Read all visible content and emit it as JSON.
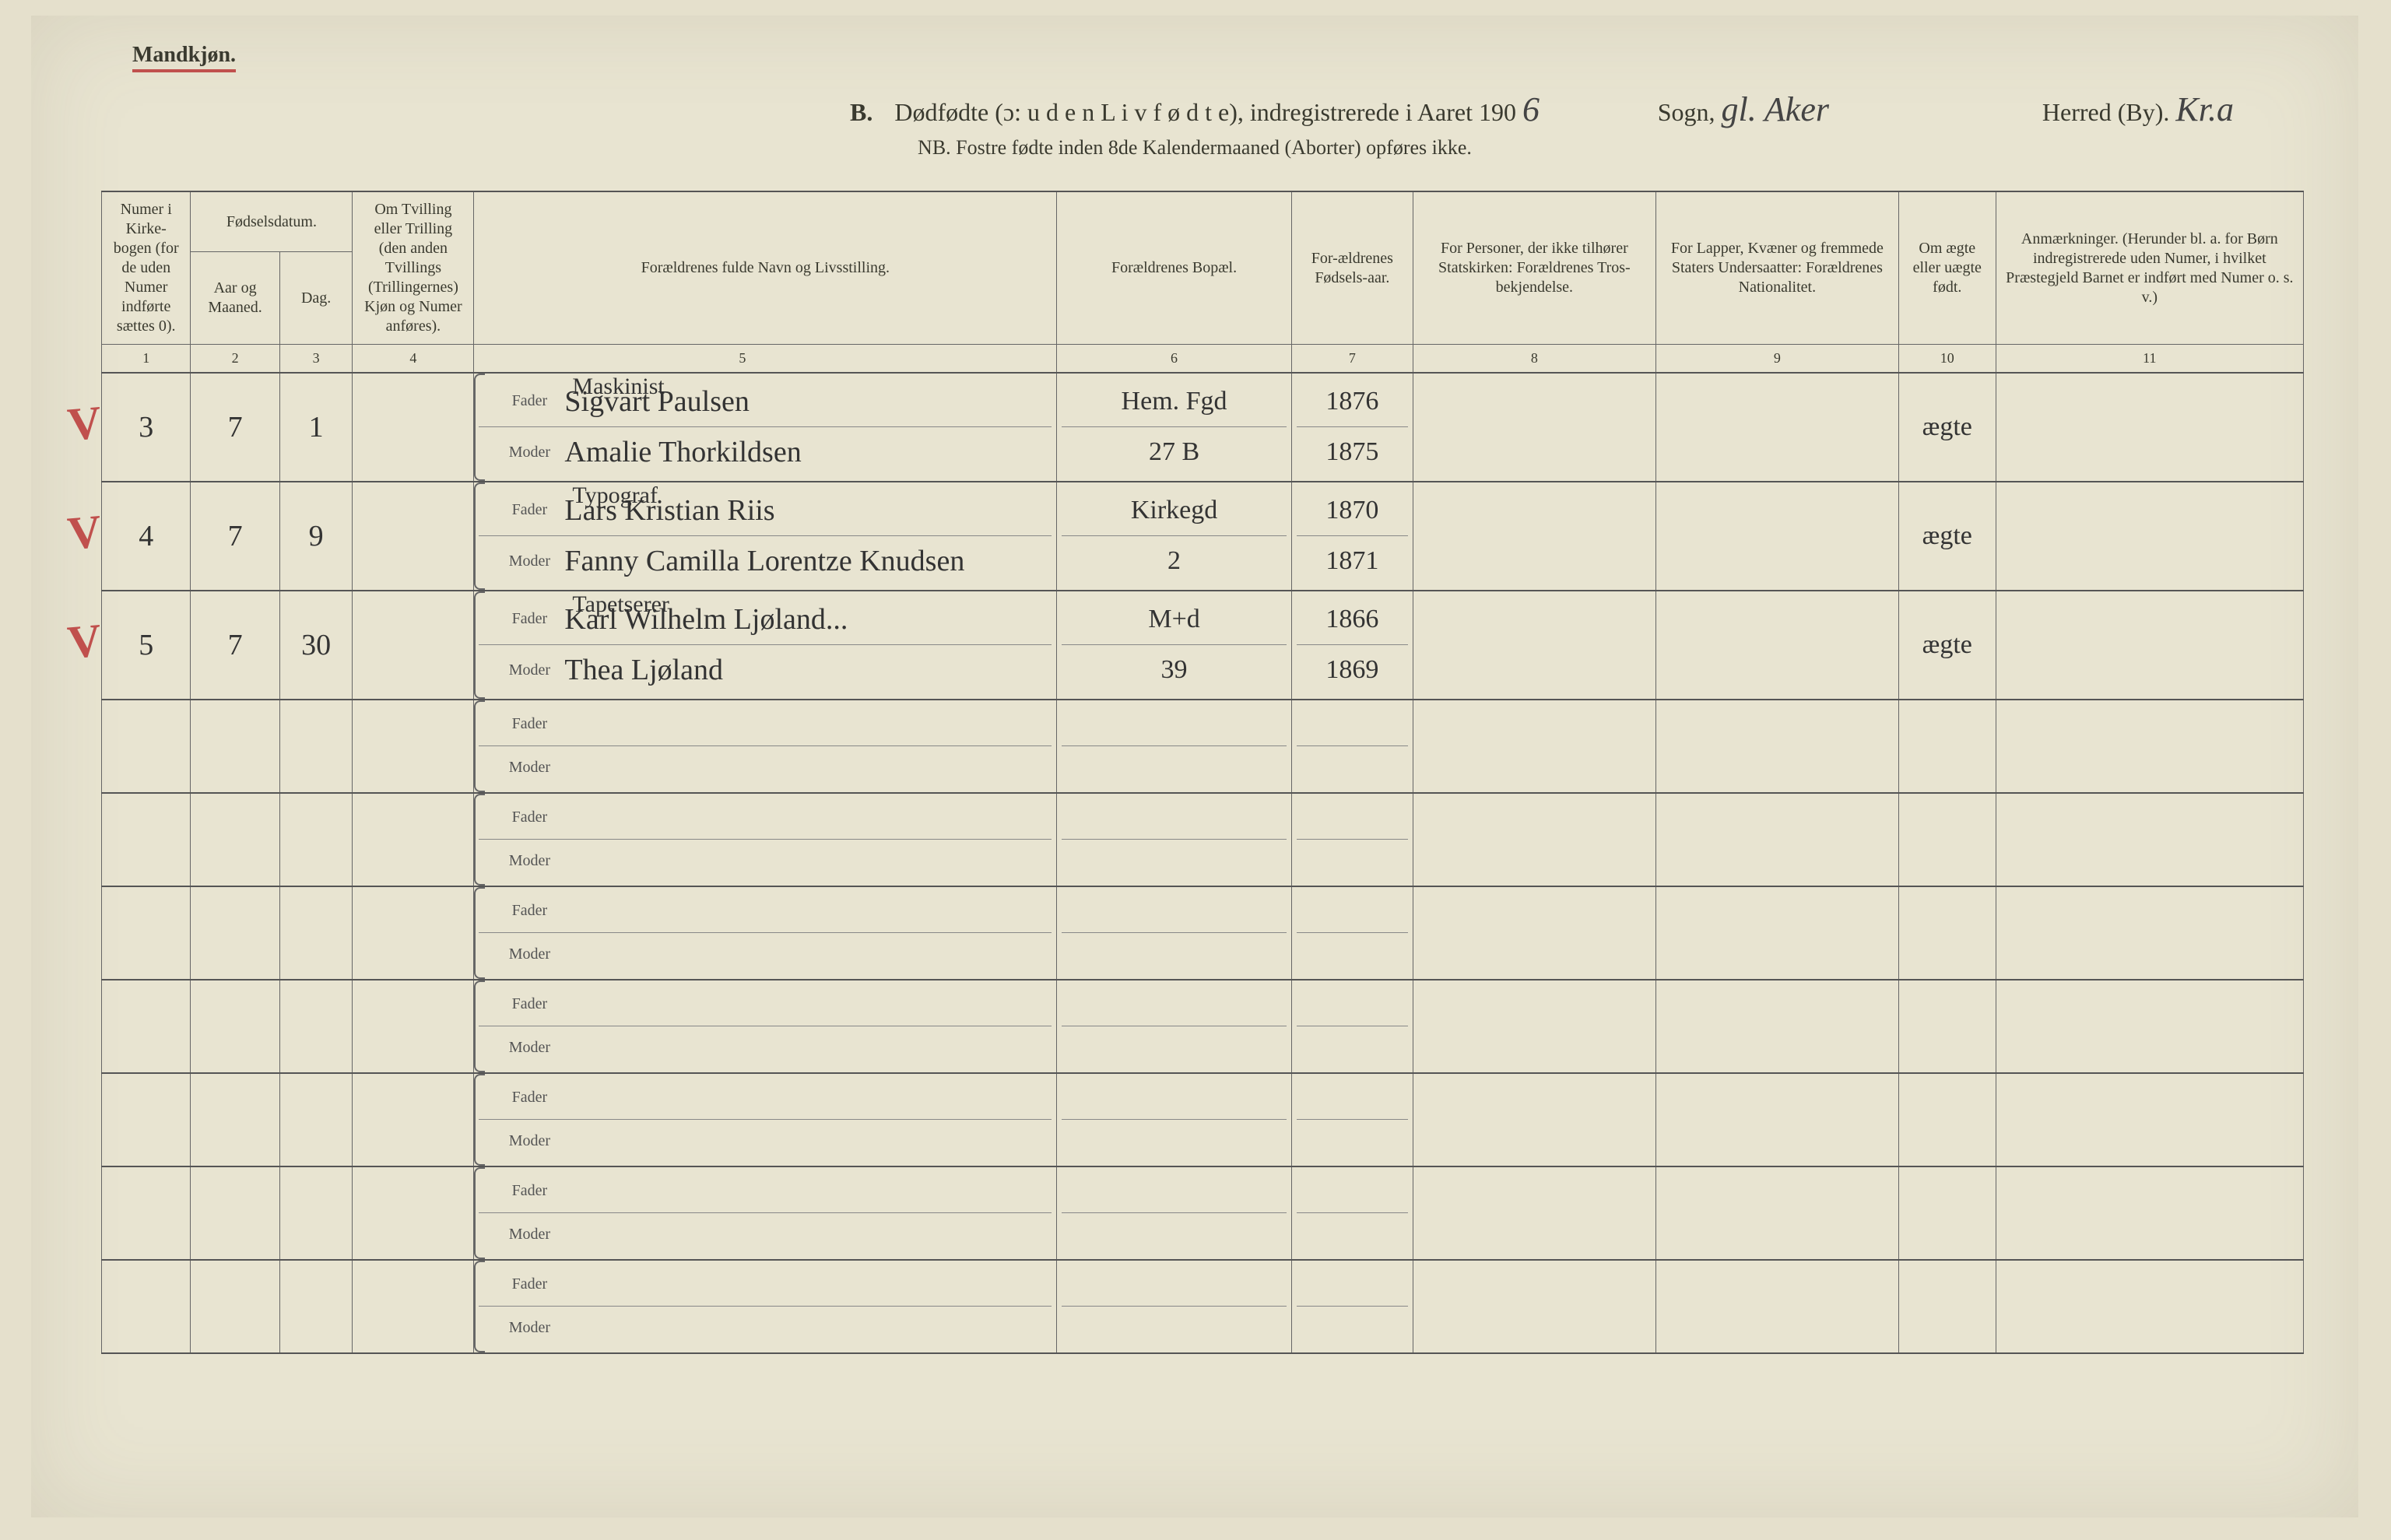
{
  "gender_label": "Mandkjøn.",
  "header": {
    "prefix": "B.",
    "title_left": "Dødfødte (ɔ: u d e n  L i v  f ø d t e), indregistrerede i Aaret 190",
    "year_suffix_hw": "6",
    "sogn_label": "Sogn,",
    "sogn_value": "gl. Aker",
    "herred_label": "Herred (By).",
    "herred_value": "Kr.a"
  },
  "sub_note": "NB.  Fostre fødte inden 8de Kalendermaaned (Aborter) opføres ikke.",
  "columns": {
    "c1": "Numer i Kirke-bogen (for de uden Numer indførte sættes 0).",
    "c2_group": "Fødselsdatum.",
    "c2": "Aar og Maaned.",
    "c3": "Dag.",
    "c4": "Om Tvilling eller Trilling (den anden Tvillings (Trillingernes) Kjøn og Numer anføres).",
    "c5": "Forældrenes fulde Navn og Livsstilling.",
    "c6": "Forældrenes Bopæl.",
    "c7": "For-ældrenes Fødsels-aar.",
    "c8": "For Personer, der ikke tilhører Statskirken: Forældrenes Tros-bekjendelse.",
    "c9": "For Lapper, Kvæner og fremmede Staters Undersaatter: Forældrenes Nationalitet.",
    "c10": "Om ægte eller uægte født.",
    "c11": "Anmærkninger. (Herunder bl. a. for Børn indregistrerede uden Numer, i hvilket Præstegjeld Barnet er indført med Numer o. s. v.)"
  },
  "colnums": [
    "1",
    "2",
    "3",
    "4",
    "5",
    "6",
    "7",
    "8",
    "9",
    "10",
    "11"
  ],
  "parent_labels": {
    "father": "Fader",
    "mother": "Moder"
  },
  "entries": [
    {
      "checked": true,
      "num": "3",
      "month": "7",
      "day": "1",
      "twin": "",
      "father_occ": "Maskinist",
      "father_name": "Sigvart Paulsen",
      "mother_name": "Amalie Thorkildsen",
      "father_bopael": "Hem. Fgd",
      "mother_bopael": "27 B",
      "father_year": "1876",
      "mother_year": "1875",
      "c8": "",
      "c9": "",
      "c10": "ægte",
      "c11": ""
    },
    {
      "checked": true,
      "num": "4",
      "month": "7",
      "day": "9",
      "twin": "",
      "father_occ": "Typograf",
      "father_name": "Lars Kristian Riis",
      "mother_name": "Fanny Camilla Lorentze Knudsen",
      "father_bopael": "Kirkegd",
      "mother_bopael": "2",
      "father_year": "1870",
      "mother_year": "1871",
      "c8": "",
      "c9": "",
      "c10": "ægte",
      "c11": ""
    },
    {
      "checked": true,
      "num": "5",
      "month": "7",
      "day": "30",
      "twin": "",
      "father_occ": "Tapetserer",
      "father_name": "Karl Wilhelm Ljøland...",
      "mother_name": "Thea Ljøland",
      "father_bopael": "M+d",
      "mother_bopael": "39",
      "father_year": "1866",
      "mother_year": "1869",
      "c8": "",
      "c9": "",
      "c10": "ægte",
      "c11": ""
    }
  ],
  "empty_row_count": 7,
  "colors": {
    "paper": "#e8e4d1",
    "ink": "#3a3a2f",
    "rule": "#555555",
    "red": "#c0504d"
  }
}
